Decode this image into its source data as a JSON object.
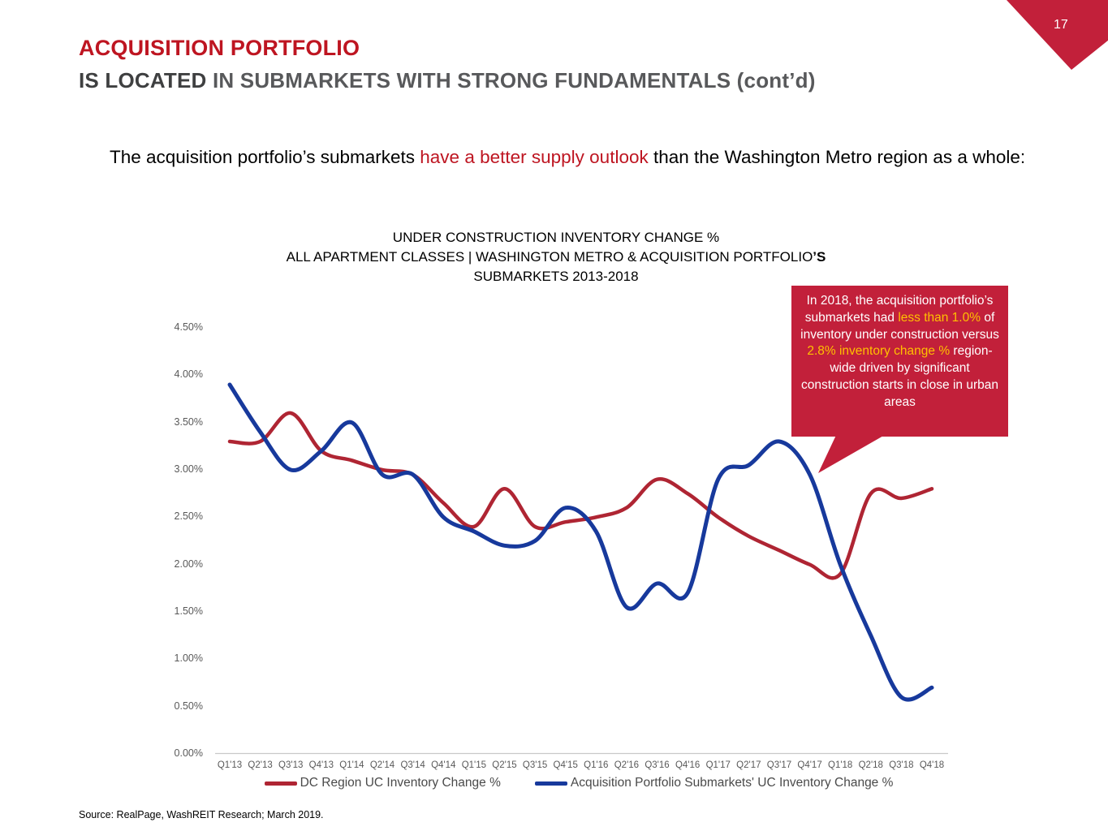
{
  "slide": {
    "page_number": "17",
    "title": "ACQUISITION PORTFOLIO",
    "subtitle_segments": [
      {
        "t": "IS LOCATED ",
        "c": "dark"
      },
      {
        "t": "IN SUBMARKETS WITH STRONG FUNDAMENTALS (cont’d)",
        "c": "gray"
      }
    ],
    "body_segments": [
      {
        "t": "The acquisition portfolio’s submarkets "
      },
      {
        "t": "have a better supply outlook",
        "c": "red"
      },
      {
        "t": " than the Washington Metro region as a whole:"
      }
    ],
    "source": "Source: RealPage, WashREIT Research; March 2019."
  },
  "callout": {
    "segments": [
      {
        "t": "In 2018, the acquisition portfolio’s submarkets had ",
        "c": "white"
      },
      {
        "t": "less than 1.0%",
        "c": "yellow"
      },
      {
        "t": " of inventory under construction versus ",
        "c": "white"
      },
      {
        "t": "2.8% inventory change %",
        "c": "yellow"
      },
      {
        "t": " region-wide driven by significant construction starts in close in urban areas",
        "c": "white"
      }
    ]
  },
  "chart_data": {
    "type": "line",
    "title_line1": "UNDER CONSTRUCTION INVENTORY CHANGE %",
    "title_line2_segments": [
      {
        "t": "ALL APARTMENT CLASSES | WASHINGTON METRO & ACQUISITION PORTFOLIO"
      },
      {
        "t": "’S",
        "b": true
      }
    ],
    "title_line3": "SUBMARKETS 2013-2018",
    "categories": [
      "Q1'13",
      "Q2'13",
      "Q3'13",
      "Q4'13",
      "Q1'14",
      "Q2'14",
      "Q3'14",
      "Q4'14",
      "Q1'15",
      "Q2'15",
      "Q3'15",
      "Q4'15",
      "Q1'16",
      "Q2'16",
      "Q3'16",
      "Q4'16",
      "Q1'17",
      "Q2'17",
      "Q3'17",
      "Q4'17",
      "Q1'18",
      "Q2'18",
      "Q3'18",
      "Q4'18"
    ],
    "series": [
      {
        "name": "DC Region UC Inventory Change %",
        "color": "#AF2533",
        "values": [
          3.3,
          3.3,
          3.6,
          3.2,
          3.1,
          3.0,
          2.95,
          2.65,
          2.4,
          2.8,
          2.4,
          2.45,
          2.5,
          2.6,
          2.9,
          2.75,
          2.5,
          2.3,
          2.15,
          2.0,
          1.9,
          2.75,
          2.7,
          2.8
        ]
      },
      {
        "name": "Acquisition Portfolio Submarkets'  UC Inventory Change %",
        "color": "#17399C",
        "values": [
          3.9,
          3.4,
          3.0,
          3.2,
          3.5,
          2.95,
          2.95,
          2.5,
          2.35,
          2.2,
          2.25,
          2.6,
          2.35,
          1.55,
          1.8,
          1.7,
          2.9,
          3.05,
          3.3,
          2.95,
          2.0,
          1.25,
          0.6,
          0.7
        ]
      }
    ],
    "ylim": [
      0,
      4.5
    ],
    "yticks": [
      {
        "label": "0.00%",
        "value": 0.0
      },
      {
        "label": "0.50%",
        "value": 0.5
      },
      {
        "label": "1.00%",
        "value": 1.0
      },
      {
        "label": "1.50%",
        "value": 1.5
      },
      {
        "label": "2.00%",
        "value": 2.0
      },
      {
        "label": "2.50%",
        "value": 2.5
      },
      {
        "label": "3.00%",
        "value": 3.0
      },
      {
        "label": "3.50%",
        "value": 3.5
      },
      {
        "label": "4.00%",
        "value": 4.0
      },
      {
        "label": "4.50%",
        "value": 4.5
      }
    ],
    "grid": false,
    "legend_position": "bottom",
    "axis_line_color": "#C9C9C9"
  },
  "colors": {
    "brand_red": "#BE1521",
    "callout_red": "#C2203A",
    "line_red": "#AF2533",
    "line_blue": "#17399C",
    "yellow_highlight": "#FFC000"
  }
}
